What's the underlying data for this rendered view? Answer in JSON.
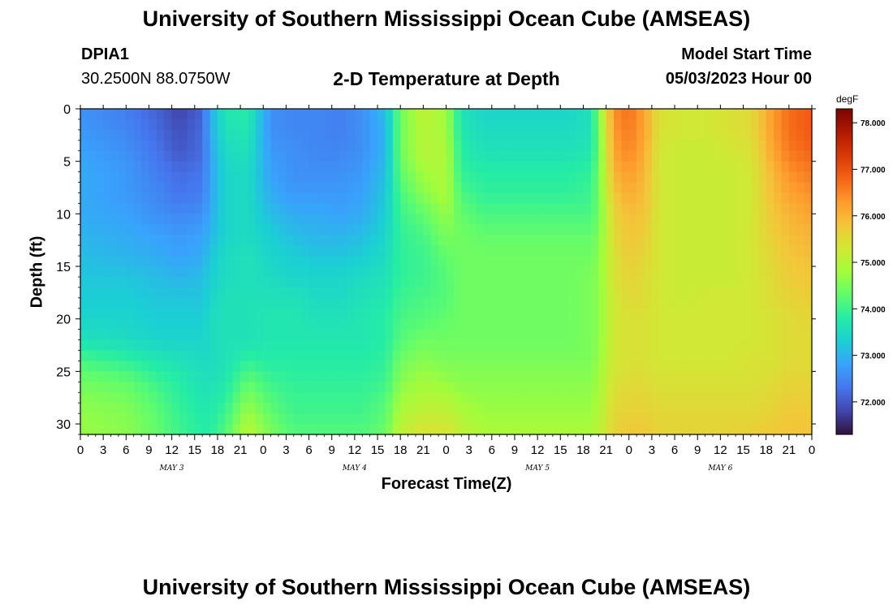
{
  "header": {
    "title": "University of Southern Mississippi Ocean Cube (AMSEAS)",
    "station": "DPIA1",
    "coords": "30.2500N  88.0750W",
    "plot_title": "2-D Temperature at Depth",
    "model_start_label": "Model Start Time",
    "model_start_value": "05/03/2023 Hour 00"
  },
  "footer": {
    "title": "University of Southern Mississippi Ocean Cube (AMSEAS)"
  },
  "chart_data": {
    "type": "heatmap",
    "title": "2-D Temperature at Depth",
    "xlabel": "Forecast Time(Z)",
    "ylabel": "Depth (ft)",
    "x_hours": [
      0,
      3,
      6,
      9,
      12,
      15,
      18,
      21,
      24,
      27,
      30,
      33,
      36,
      39,
      42,
      45,
      48,
      51,
      54,
      57,
      60,
      63,
      66,
      69,
      72,
      75,
      78,
      81,
      84,
      87,
      90,
      93,
      96
    ],
    "x_tick_labels": [
      "0",
      "3",
      "6",
      "9",
      "12",
      "15",
      "18",
      "21",
      "0",
      "3",
      "6",
      "9",
      "12",
      "15",
      "18",
      "21",
      "0",
      "3",
      "6",
      "9",
      "12",
      "15",
      "18",
      "21",
      "0",
      "3",
      "6",
      "9",
      "12",
      "15",
      "18",
      "21",
      "0"
    ],
    "day_labels": [
      {
        "label": "MAY 3",
        "hour": 12
      },
      {
        "label": "MAY 4",
        "hour": 36
      },
      {
        "label": "MAY 5",
        "hour": 60
      },
      {
        "label": "MAY 6",
        "hour": 84
      }
    ],
    "y_ticks": [
      0,
      5,
      10,
      15,
      20,
      25,
      30
    ],
    "y_range": [
      0,
      31
    ],
    "x_range": [
      0,
      96
    ],
    "colorbar": {
      "unit": "degF",
      "min": 71.3,
      "max": 78.3,
      "ticks": [
        "78.000",
        "77.000",
        "76.000",
        "75.000",
        "74.000",
        "73.000",
        "72.000"
      ],
      "colors": [
        "#30123b",
        "#4145ab",
        "#4675ed",
        "#39a2fc",
        "#1bcfd4",
        "#24eca6",
        "#61fc6c",
        "#a4fc3b",
        "#d1e834",
        "#f3c63a",
        "#fe9b2d",
        "#f36315",
        "#d93806",
        "#b11901",
        "#7a0402"
      ]
    },
    "depths_ft": [
      0,
      2,
      4,
      6,
      8,
      10,
      12,
      14,
      16,
      18,
      20,
      22,
      24,
      26,
      28,
      30,
      31
    ],
    "hours": [
      0,
      6,
      10,
      13,
      16,
      17,
      19,
      22,
      25,
      28,
      31,
      34,
      37,
      40,
      42,
      45,
      48,
      50,
      53,
      57,
      60,
      64,
      67,
      68,
      70,
      72,
      74,
      76,
      79,
      82,
      85,
      88,
      91,
      93,
      96
    ],
    "temperature_degF": [
      [
        72.6,
        72.4,
        72.1,
        71.8,
        72.1,
        72.9,
        73.7,
        73.8,
        72.6,
        72.5,
        72.5,
        72.4,
        72.6,
        73.1,
        74.4,
        75.1,
        74.8,
        73.6,
        73.4,
        73.4,
        73.4,
        73.4,
        73.6,
        74.5,
        76.4,
        76.7,
        76.2,
        75.4,
        75.3,
        75.3,
        75.4,
        75.5,
        76.3,
        76.7,
        76.9
      ],
      [
        72.7,
        72.5,
        72.2,
        71.9,
        72.2,
        72.9,
        73.6,
        73.7,
        72.6,
        72.5,
        72.5,
        72.4,
        72.6,
        73.0,
        74.4,
        75.0,
        74.8,
        73.7,
        73.5,
        73.5,
        73.5,
        73.5,
        73.6,
        74.4,
        76.3,
        76.6,
        76.2,
        75.4,
        75.3,
        75.3,
        75.4,
        75.5,
        76.3,
        76.7,
        76.9
      ],
      [
        72.8,
        72.6,
        72.3,
        72.0,
        72.2,
        72.8,
        73.5,
        73.6,
        72.7,
        72.6,
        72.5,
        72.5,
        72.6,
        73.0,
        74.4,
        75.0,
        74.9,
        73.8,
        73.6,
        73.6,
        73.6,
        73.6,
        73.7,
        74.3,
        76.2,
        76.5,
        76.1,
        75.3,
        75.2,
        75.2,
        75.3,
        75.4,
        76.2,
        76.6,
        76.8
      ],
      [
        72.9,
        72.7,
        72.4,
        72.2,
        72.3,
        72.8,
        73.4,
        73.5,
        72.8,
        72.6,
        72.6,
        72.6,
        72.7,
        73.1,
        74.3,
        74.8,
        74.9,
        73.9,
        73.8,
        73.8,
        73.8,
        73.8,
        73.9,
        74.4,
        76.0,
        76.3,
        76.0,
        75.3,
        75.2,
        75.2,
        75.2,
        75.3,
        76.0,
        76.4,
        76.6
      ],
      [
        72.9,
        72.7,
        72.5,
        72.3,
        72.4,
        72.8,
        73.4,
        73.5,
        72.9,
        72.7,
        72.7,
        72.7,
        72.8,
        73.2,
        74.1,
        74.6,
        74.9,
        74.1,
        73.9,
        73.9,
        73.9,
        73.9,
        74.0,
        74.4,
        75.8,
        76.1,
        75.9,
        75.3,
        75.2,
        75.2,
        75.2,
        75.3,
        75.9,
        76.2,
        76.4
      ],
      [
        72.9,
        72.8,
        72.6,
        72.5,
        72.6,
        72.9,
        73.4,
        73.5,
        73.1,
        72.9,
        72.9,
        72.8,
        72.9,
        73.3,
        74.0,
        74.3,
        74.7,
        74.3,
        74.1,
        74.1,
        74.1,
        74.1,
        74.1,
        74.4,
        75.6,
        75.9,
        75.8,
        75.3,
        75.2,
        75.2,
        75.2,
        75.3,
        75.8,
        76.0,
        76.2
      ],
      [
        73.0,
        72.9,
        72.8,
        72.7,
        72.8,
        73.0,
        73.4,
        73.5,
        73.3,
        73.1,
        73.0,
        73.0,
        73.1,
        73.4,
        73.9,
        74.1,
        74.5,
        74.4,
        74.3,
        74.3,
        74.3,
        74.3,
        74.3,
        74.5,
        75.5,
        75.8,
        75.7,
        75.3,
        75.2,
        75.2,
        75.2,
        75.3,
        75.7,
        75.9,
        76.0
      ],
      [
        73.1,
        73.0,
        72.9,
        72.8,
        72.9,
        73.2,
        73.5,
        73.6,
        73.4,
        73.3,
        73.2,
        73.2,
        73.3,
        73.5,
        73.9,
        74.0,
        74.3,
        74.4,
        74.4,
        74.4,
        74.4,
        74.4,
        74.4,
        74.6,
        75.4,
        75.7,
        75.6,
        75.3,
        75.2,
        75.2,
        75.2,
        75.3,
        75.6,
        75.8,
        75.9
      ],
      [
        73.2,
        73.2,
        73.1,
        73.0,
        73.1,
        73.3,
        73.5,
        73.6,
        73.5,
        73.4,
        73.4,
        73.4,
        73.5,
        73.6,
        73.9,
        74.0,
        74.2,
        74.4,
        74.4,
        74.4,
        74.4,
        74.4,
        74.5,
        74.6,
        75.4,
        75.6,
        75.5,
        75.3,
        75.2,
        75.2,
        75.2,
        75.3,
        75.5,
        75.7,
        75.8
      ],
      [
        73.3,
        73.3,
        73.2,
        73.2,
        73.2,
        73.4,
        73.6,
        73.6,
        73.6,
        73.6,
        73.5,
        73.5,
        73.6,
        73.7,
        74.0,
        74.1,
        74.2,
        74.4,
        74.4,
        74.4,
        74.4,
        74.4,
        74.5,
        74.6,
        75.3,
        75.5,
        75.5,
        75.3,
        75.2,
        75.3,
        75.3,
        75.3,
        75.5,
        75.6,
        75.7
      ],
      [
        73.4,
        73.4,
        73.3,
        73.3,
        73.3,
        73.5,
        73.6,
        73.6,
        73.7,
        73.7,
        73.6,
        73.6,
        73.7,
        73.8,
        74.1,
        74.2,
        74.3,
        74.4,
        74.4,
        74.4,
        74.4,
        74.4,
        74.5,
        74.6,
        75.3,
        75.4,
        75.4,
        75.3,
        75.3,
        75.3,
        75.3,
        75.3,
        75.4,
        75.5,
        75.6
      ],
      [
        73.6,
        73.5,
        73.4,
        73.4,
        73.4,
        73.5,
        73.6,
        73.6,
        73.7,
        73.7,
        73.7,
        73.7,
        73.7,
        73.8,
        74.2,
        74.4,
        74.4,
        74.4,
        74.4,
        74.4,
        74.4,
        74.4,
        74.5,
        74.6,
        75.3,
        75.4,
        75.4,
        75.3,
        75.3,
        75.3,
        75.3,
        75.3,
        75.4,
        75.5,
        75.5
      ],
      [
        74.1,
        73.9,
        73.7,
        73.6,
        73.5,
        73.5,
        73.6,
        73.9,
        73.8,
        73.8,
        73.8,
        73.8,
        73.8,
        73.9,
        74.4,
        74.6,
        74.5,
        74.5,
        74.5,
        74.5,
        74.5,
        74.5,
        74.5,
        74.7,
        75.3,
        75.4,
        75.4,
        75.3,
        75.3,
        75.3,
        75.3,
        75.4,
        75.4,
        75.5,
        75.5
      ],
      [
        74.4,
        74.3,
        74.0,
        73.8,
        73.6,
        73.6,
        73.7,
        74.3,
        74.0,
        73.9,
        73.9,
        73.9,
        73.9,
        74.0,
        74.6,
        74.8,
        74.7,
        74.6,
        74.6,
        74.6,
        74.6,
        74.6,
        74.6,
        74.8,
        75.4,
        75.5,
        75.5,
        75.4,
        75.4,
        75.4,
        75.4,
        75.4,
        75.5,
        75.6,
        75.6
      ],
      [
        74.6,
        74.5,
        74.2,
        73.9,
        73.7,
        73.7,
        73.9,
        74.6,
        74.2,
        74.0,
        74.0,
        74.0,
        74.0,
        74.2,
        74.8,
        75.0,
        75.0,
        74.8,
        74.7,
        74.7,
        74.7,
        74.7,
        74.7,
        74.9,
        75.5,
        75.6,
        75.6,
        75.5,
        75.5,
        75.5,
        75.5,
        75.5,
        75.6,
        75.7,
        75.7
      ],
      [
        74.7,
        74.6,
        74.3,
        74.0,
        73.8,
        73.8,
        74.1,
        74.9,
        74.4,
        74.1,
        74.1,
        74.1,
        74.1,
        74.3,
        75.0,
        75.3,
        75.3,
        75.0,
        74.8,
        74.8,
        74.8,
        74.8,
        74.8,
        75.0,
        75.6,
        75.7,
        75.7,
        75.6,
        75.6,
        75.6,
        75.6,
        75.6,
        75.7,
        75.8,
        75.8
      ],
      [
        74.7,
        74.6,
        74.3,
        74.0,
        73.8,
        73.8,
        74.2,
        75.0,
        74.5,
        74.2,
        74.2,
        74.2,
        74.2,
        74.4,
        75.1,
        75.4,
        75.4,
        75.1,
        74.9,
        74.9,
        74.9,
        74.9,
        74.9,
        75.1,
        75.6,
        75.8,
        75.8,
        75.6,
        75.6,
        75.6,
        75.6,
        75.7,
        75.8,
        75.8,
        75.8
      ]
    ]
  }
}
